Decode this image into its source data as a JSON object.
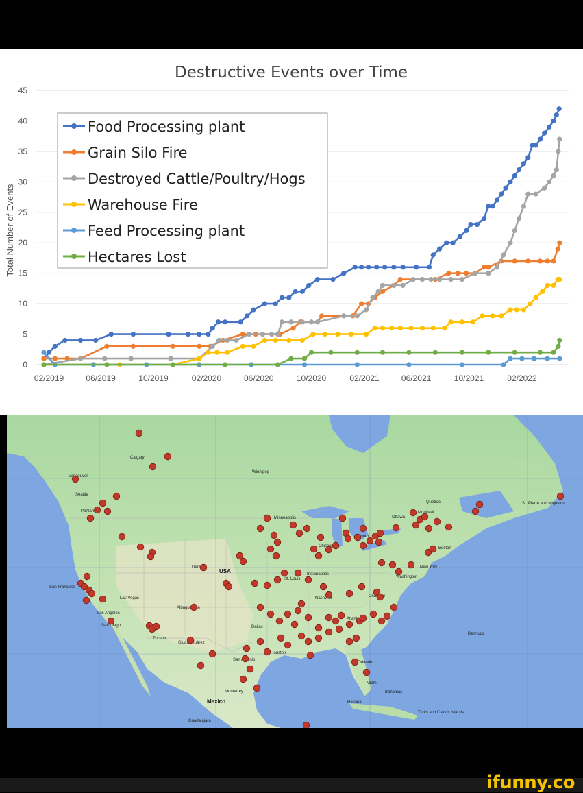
{
  "chart_data": {
    "type": "line",
    "title": "Destructive Events over Time",
    "xlabel": "",
    "ylabel": "Total Number of Events",
    "ylim": [
      0,
      45
    ],
    "yticks": [
      0,
      5,
      10,
      15,
      20,
      25,
      30,
      35,
      40,
      45
    ],
    "xlim": [
      "2019-01-01",
      "2022-05-20"
    ],
    "xticks": [
      {
        "date": "2019-02-01",
        "label": "02/2019"
      },
      {
        "date": "2019-06-01",
        "label": "06/2019"
      },
      {
        "date": "2019-10-01",
        "label": "10/2019"
      },
      {
        "date": "2020-02-01",
        "label": "02/2020"
      },
      {
        "date": "2020-06-01",
        "label": "06/2020"
      },
      {
        "date": "2020-10-01",
        "label": "10/2020"
      },
      {
        "date": "2021-02-01",
        "label": "02/2021"
      },
      {
        "date": "2021-06-01",
        "label": "06/2021"
      },
      {
        "date": "2021-10-01",
        "label": "10/2021"
      },
      {
        "date": "2022-02-01",
        "label": "02/2022"
      }
    ],
    "grid": true,
    "legend": "top-left",
    "series": [
      {
        "name": "Food Processing plant",
        "color": "#4472C4",
        "points": [
          [
            "2019-01-20",
            1
          ],
          [
            "2019-02-01",
            2
          ],
          [
            "2019-02-15",
            3
          ],
          [
            "2019-03-10",
            4
          ],
          [
            "2019-04-15",
            4
          ],
          [
            "2019-05-20",
            4
          ],
          [
            "2019-06-25",
            5
          ],
          [
            "2019-08-15",
            5
          ],
          [
            "2019-11-05",
            5
          ],
          [
            "2019-12-20",
            5
          ],
          [
            "2020-01-15",
            5
          ],
          [
            "2020-02-05",
            5
          ],
          [
            "2020-02-15",
            6
          ],
          [
            "2020-02-28",
            7
          ],
          [
            "2020-03-15",
            7
          ],
          [
            "2020-04-20",
            7
          ],
          [
            "2020-05-05",
            8
          ],
          [
            "2020-05-20",
            9
          ],
          [
            "2020-06-15",
            10
          ],
          [
            "2020-07-10",
            10
          ],
          [
            "2020-07-25",
            11
          ],
          [
            "2020-08-10",
            11
          ],
          [
            "2020-08-25",
            12
          ],
          [
            "2020-09-10",
            12
          ],
          [
            "2020-09-25",
            13
          ],
          [
            "2020-10-15",
            14
          ],
          [
            "2020-11-20",
            14
          ],
          [
            "2020-12-15",
            15
          ],
          [
            "2021-01-10",
            16
          ],
          [
            "2021-01-25",
            16
          ],
          [
            "2021-02-10",
            16
          ],
          [
            "2021-03-01",
            16
          ],
          [
            "2021-03-20",
            16
          ],
          [
            "2021-04-10",
            16
          ],
          [
            "2021-05-01",
            16
          ],
          [
            "2021-06-01",
            16
          ],
          [
            "2021-07-01",
            16
          ],
          [
            "2021-07-10",
            18
          ],
          [
            "2021-07-25",
            19
          ],
          [
            "2021-08-10",
            20
          ],
          [
            "2021-08-25",
            20
          ],
          [
            "2021-09-10",
            21
          ],
          [
            "2021-09-25",
            22
          ],
          [
            "2021-10-05",
            23
          ],
          [
            "2021-10-20",
            23
          ],
          [
            "2021-11-05",
            24
          ],
          [
            "2021-11-15",
            26
          ],
          [
            "2021-11-25",
            26
          ],
          [
            "2021-12-05",
            27
          ],
          [
            "2021-12-15",
            28
          ],
          [
            "2021-12-25",
            29
          ],
          [
            "2022-01-05",
            30
          ],
          [
            "2022-01-15",
            31
          ],
          [
            "2022-01-25",
            32
          ],
          [
            "2022-02-05",
            33
          ],
          [
            "2022-02-15",
            34
          ],
          [
            "2022-02-25",
            36
          ],
          [
            "2022-03-05",
            36
          ],
          [
            "2022-03-15",
            37
          ],
          [
            "2022-03-25",
            38
          ],
          [
            "2022-04-05",
            39
          ],
          [
            "2022-04-15",
            40
          ],
          [
            "2022-04-22",
            41
          ],
          [
            "2022-04-28",
            42
          ]
        ]
      },
      {
        "name": "Grain Silo Fire",
        "color": "#ED7D31",
        "points": [
          [
            "2019-01-20",
            1
          ],
          [
            "2019-02-15",
            1
          ],
          [
            "2019-03-15",
            1
          ],
          [
            "2019-04-15",
            1
          ],
          [
            "2019-06-15",
            3
          ],
          [
            "2019-08-15",
            3
          ],
          [
            "2019-11-15",
            3
          ],
          [
            "2020-01-15",
            3
          ],
          [
            "2020-02-10",
            3
          ],
          [
            "2020-03-10",
            4
          ],
          [
            "2020-04-25",
            5
          ],
          [
            "2020-05-25",
            5
          ],
          [
            "2020-07-20",
            5
          ],
          [
            "2020-08-20",
            6
          ],
          [
            "2020-09-05",
            7
          ],
          [
            "2020-10-15",
            7
          ],
          [
            "2020-10-25",
            8
          ],
          [
            "2020-12-15",
            8
          ],
          [
            "2021-01-05",
            8
          ],
          [
            "2021-01-25",
            10
          ],
          [
            "2021-02-10",
            10
          ],
          [
            "2021-02-25",
            11
          ],
          [
            "2021-03-15",
            12
          ],
          [
            "2021-04-10",
            13
          ],
          [
            "2021-04-25",
            14
          ],
          [
            "2021-06-15",
            14
          ],
          [
            "2021-07-15",
            14
          ],
          [
            "2021-08-15",
            15
          ],
          [
            "2021-09-05",
            15
          ],
          [
            "2021-09-25",
            15
          ],
          [
            "2021-10-15",
            15
          ],
          [
            "2021-11-05",
            16
          ],
          [
            "2021-11-15",
            16
          ],
          [
            "2021-12-15",
            17
          ],
          [
            "2022-01-15",
            17
          ],
          [
            "2022-02-15",
            17
          ],
          [
            "2022-03-15",
            17
          ],
          [
            "2022-04-01",
            17
          ],
          [
            "2022-04-15",
            17
          ],
          [
            "2022-04-25",
            19
          ],
          [
            "2022-04-29",
            20
          ]
        ]
      },
      {
        "name": "Destroyed Cattle/Poultry/Hogs",
        "color": "#A5A5A5",
        "points": [
          [
            "2019-01-20",
            0
          ],
          [
            "2019-04-15",
            1
          ],
          [
            "2019-06-10",
            1
          ],
          [
            "2019-08-10",
            1
          ],
          [
            "2019-11-10",
            1
          ],
          [
            "2020-01-15",
            1
          ],
          [
            "2020-02-15",
            3
          ],
          [
            "2020-03-01",
            4
          ],
          [
            "2020-03-20",
            4
          ],
          [
            "2020-04-10",
            4
          ],
          [
            "2020-05-10",
            5
          ],
          [
            "2020-06-10",
            5
          ],
          [
            "2020-07-01",
            5
          ],
          [
            "2020-07-15",
            5
          ],
          [
            "2020-07-25",
            7
          ],
          [
            "2020-08-15",
            7
          ],
          [
            "2020-09-10",
            7
          ],
          [
            "2020-10-01",
            7
          ],
          [
            "2020-10-15",
            7
          ],
          [
            "2020-12-15",
            8
          ],
          [
            "2021-01-15",
            8
          ],
          [
            "2021-02-05",
            9
          ],
          [
            "2021-02-20",
            11
          ],
          [
            "2021-03-05",
            12
          ],
          [
            "2021-03-15",
            13
          ],
          [
            "2021-04-10",
            13
          ],
          [
            "2021-05-01",
            13
          ],
          [
            "2021-05-25",
            14
          ],
          [
            "2021-06-15",
            14
          ],
          [
            "2021-07-05",
            14
          ],
          [
            "2021-07-25",
            14
          ],
          [
            "2021-08-20",
            14
          ],
          [
            "2021-09-15",
            14
          ],
          [
            "2021-10-15",
            15
          ],
          [
            "2021-11-15",
            15
          ],
          [
            "2021-12-05",
            16
          ],
          [
            "2021-12-20",
            18
          ],
          [
            "2022-01-05",
            20
          ],
          [
            "2022-01-15",
            22
          ],
          [
            "2022-01-25",
            24
          ],
          [
            "2022-02-05",
            26
          ],
          [
            "2022-02-15",
            28
          ],
          [
            "2022-03-05",
            28
          ],
          [
            "2022-03-25",
            29
          ],
          [
            "2022-04-05",
            30
          ],
          [
            "2022-04-15",
            31
          ],
          [
            "2022-04-22",
            32
          ],
          [
            "2022-04-26",
            35
          ],
          [
            "2022-04-29",
            37
          ]
        ]
      },
      {
        "name": "Warehouse Fire",
        "color": "#FFC000",
        "points": [
          [
            "2019-01-20",
            0
          ],
          [
            "2019-07-15",
            0
          ],
          [
            "2019-11-15",
            0
          ],
          [
            "2020-01-15",
            1
          ],
          [
            "2020-02-05",
            2
          ],
          [
            "2020-02-25",
            2
          ],
          [
            "2020-03-20",
            2
          ],
          [
            "2020-04-25",
            3
          ],
          [
            "2020-05-20",
            3
          ],
          [
            "2020-06-15",
            4
          ],
          [
            "2020-07-10",
            4
          ],
          [
            "2020-08-10",
            4
          ],
          [
            "2020-09-10",
            4
          ],
          [
            "2020-10-05",
            5
          ],
          [
            "2020-11-01",
            5
          ],
          [
            "2020-12-01",
            5
          ],
          [
            "2021-01-01",
            5
          ],
          [
            "2021-02-05",
            5
          ],
          [
            "2021-02-25",
            6
          ],
          [
            "2021-03-15",
            6
          ],
          [
            "2021-04-05",
            6
          ],
          [
            "2021-04-25",
            6
          ],
          [
            "2021-05-20",
            6
          ],
          [
            "2021-06-15",
            6
          ],
          [
            "2021-07-10",
            6
          ],
          [
            "2021-08-05",
            6
          ],
          [
            "2021-08-20",
            7
          ],
          [
            "2021-09-15",
            7
          ],
          [
            "2021-10-10",
            7
          ],
          [
            "2021-11-01",
            8
          ],
          [
            "2021-11-25",
            8
          ],
          [
            "2021-12-15",
            8
          ],
          [
            "2022-01-05",
            9
          ],
          [
            "2022-01-20",
            9
          ],
          [
            "2022-02-05",
            9
          ],
          [
            "2022-02-20",
            10
          ],
          [
            "2022-03-05",
            11
          ],
          [
            "2022-03-20",
            12
          ],
          [
            "2022-04-01",
            13
          ],
          [
            "2022-04-15",
            13
          ],
          [
            "2022-04-25",
            14
          ],
          [
            "2022-04-29",
            14
          ]
        ]
      },
      {
        "name": "Feed Processing plant",
        "color": "#5B9BD5",
        "points": [
          [
            "2019-01-20",
            2
          ],
          [
            "2019-02-15",
            0
          ],
          [
            "2019-05-15",
            0
          ],
          [
            "2019-09-15",
            0
          ],
          [
            "2020-01-15",
            0
          ],
          [
            "2020-05-15",
            0
          ],
          [
            "2020-09-15",
            0
          ],
          [
            "2021-01-15",
            0
          ],
          [
            "2021-05-15",
            0
          ],
          [
            "2021-09-15",
            0
          ],
          [
            "2021-12-20",
            0
          ],
          [
            "2022-01-05",
            1
          ],
          [
            "2022-02-01",
            1
          ],
          [
            "2022-03-01",
            1
          ],
          [
            "2022-04-01",
            1
          ],
          [
            "2022-04-29",
            1
          ]
        ]
      },
      {
        "name": "Hectares Lost",
        "color": "#70AD47",
        "points": [
          [
            "2019-01-20",
            0
          ],
          [
            "2019-06-15",
            0
          ],
          [
            "2019-11-15",
            0
          ],
          [
            "2020-03-15",
            0
          ],
          [
            "2020-07-15",
            0
          ],
          [
            "2020-08-15",
            1
          ],
          [
            "2020-09-15",
            1
          ],
          [
            "2020-10-01",
            2
          ],
          [
            "2020-11-15",
            2
          ],
          [
            "2021-01-15",
            2
          ],
          [
            "2021-03-15",
            2
          ],
          [
            "2021-05-15",
            2
          ],
          [
            "2021-07-15",
            2
          ],
          [
            "2021-09-15",
            2
          ],
          [
            "2021-11-15",
            2
          ],
          [
            "2022-01-15",
            2
          ],
          [
            "2022-03-15",
            2
          ],
          [
            "2022-04-15",
            2
          ],
          [
            "2022-04-26",
            3
          ],
          [
            "2022-04-29",
            4
          ]
        ]
      }
    ]
  },
  "map": {
    "labels": {
      "usa": "USA",
      "mexico": "Mexico",
      "calgary": "Calgary",
      "vancouver": "Vancouver",
      "seattle": "Seattle",
      "portland": "Portland",
      "san_francisco": "San Francisco",
      "las_vegas": "Las Vegas",
      "los_angeles": "Los Angeles",
      "san_diego": "San Diego",
      "tucson": "Tucson",
      "albuquerque": "Albuquerque",
      "ciudad_juarez": "Ciudad Juárez",
      "denver": "Denver",
      "winnipeg": "Winnipeg",
      "minneapolis": "Minneapolis",
      "chicago": "Chicago",
      "toronto": "Toronto",
      "ottawa": "Ottawa",
      "montreal": "Montreal",
      "quebec": "Quebec",
      "boston": "Boston",
      "new_york": "New York",
      "washington": "Washington",
      "st_louis": "St. Louis",
      "indianapolis": "Indianapolis",
      "nashville": "Nashville",
      "charlotte": "Charlotte",
      "atlanta": "Atlanta",
      "dallas": "Dallas",
      "houston": "Houston",
      "san_antonio": "San Antonio",
      "orlando": "Orlando",
      "miami": "Miami",
      "monterrey": "Monterrey",
      "havana": "Havana",
      "bahamas": "Bahamas",
      "bermuda": "Bermuda",
      "st_pierre": "St. Pierre and Miquelon",
      "turks": "Turks and Caicos Islands",
      "guadalajara": "Guadalajara"
    }
  },
  "watermark": "ifunny.co"
}
